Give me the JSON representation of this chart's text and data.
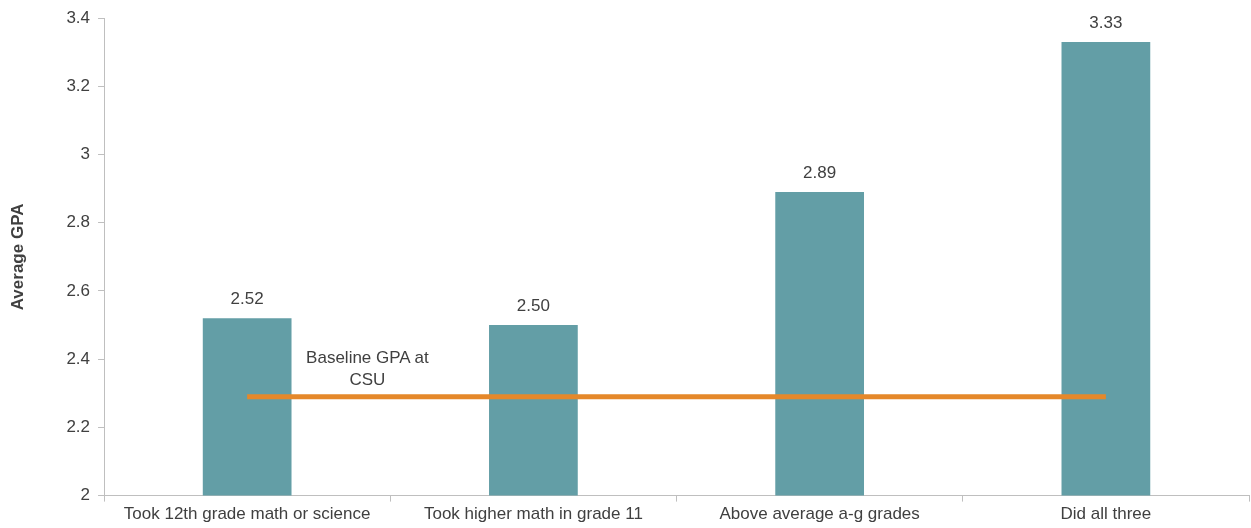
{
  "chart_data": {
    "type": "bar",
    "ylabel": "Average GPA",
    "categories": [
      "Took 12th grade math or science",
      "Took higher math in grade 11",
      "Above average a-g grades",
      "Did all three"
    ],
    "values": [
      2.52,
      2.5,
      2.89,
      3.33
    ],
    "color": "#639ea6",
    "value_labels": [
      "2.52",
      "2.50",
      "2.89",
      "3.33"
    ],
    "ylim": [
      2,
      3.4
    ],
    "yticks": [
      2,
      2.2,
      2.4,
      2.6,
      2.8,
      3,
      3.2,
      3.4
    ],
    "grid": false,
    "legend": false,
    "ref_lines": [
      {
        "axis": "y",
        "value": 2.29,
        "label": "Baseline GPA at CSU",
        "color": "#e5882a"
      }
    ]
  }
}
